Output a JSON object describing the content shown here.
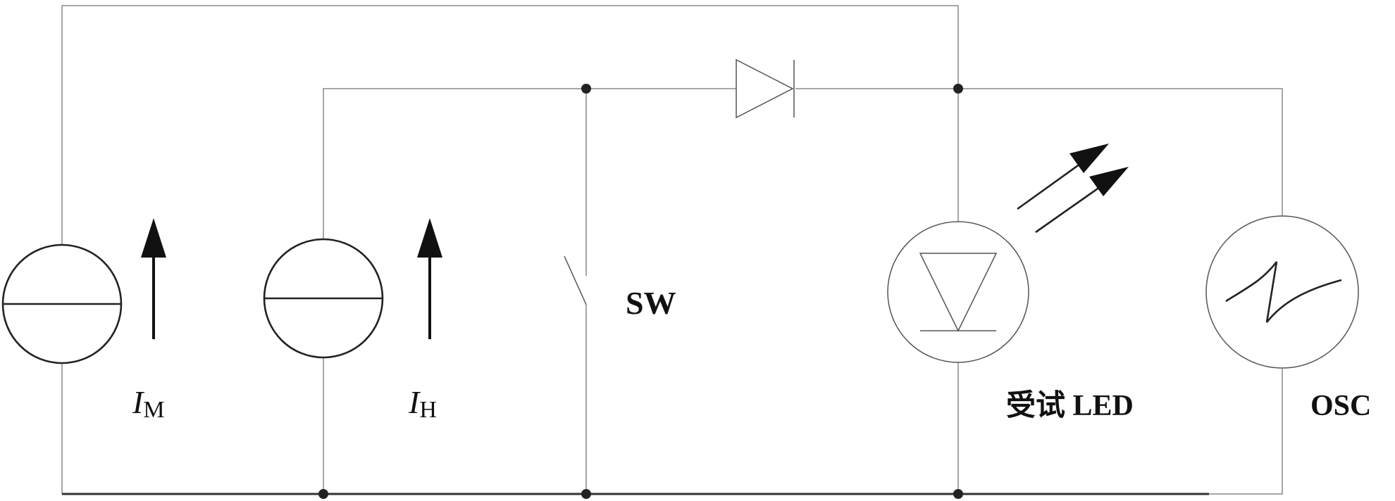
{
  "labels": {
    "source_m_symbol": "I",
    "source_m_subscript": "M",
    "source_h_symbol": "I",
    "source_h_subscript": "H",
    "switch": "SW",
    "led": "受试 LED",
    "oscilloscope": "OSC"
  }
}
